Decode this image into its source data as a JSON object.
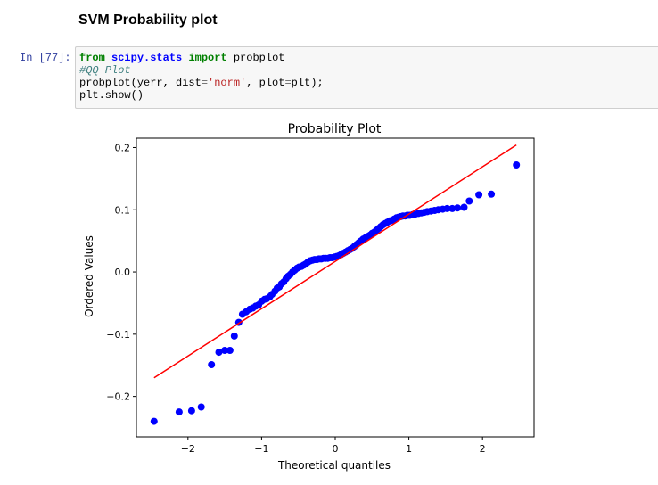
{
  "heading": "SVM Probability plot",
  "cell": {
    "prompt": "In [77]:",
    "code": {
      "line1": {
        "kw1": "from",
        "mod": "scipy.stats",
        "kw2": "import",
        "name": "probplot"
      },
      "line2": "#QQ Plot",
      "line3": {
        "pre": "probplot(yerr, dist",
        "eq1": "=",
        "str": "'norm'",
        "mid": ", plot",
        "eq2": "=",
        "post": "plt);"
      },
      "line4": "plt.show()"
    }
  },
  "chart_data": {
    "type": "scatter",
    "title": "Probability Plot",
    "xlabel": "Theoretical quantiles",
    "ylabel": "Ordered Values",
    "xlim": [
      -2.7,
      2.7
    ],
    "ylim": [
      -0.265,
      0.215
    ],
    "xticks": [
      -2,
      -1,
      0,
      1,
      2
    ],
    "xtick_labels": [
      "−2",
      "−1",
      "0",
      "1",
      "2"
    ],
    "yticks": [
      -0.2,
      -0.1,
      0.0,
      0.1,
      0.2
    ],
    "ytick_labels": [
      "−0.2",
      "−0.1",
      "0.0",
      "0.1",
      "0.2"
    ],
    "grid": false,
    "point_color": "#0000ff",
    "line_color": "#ff0000",
    "fit_line": {
      "x": [
        -2.46,
        2.46
      ],
      "y": [
        -0.17,
        0.204
      ]
    },
    "points": [
      [
        -2.46,
        -0.24
      ],
      [
        -2.12,
        -0.225
      ],
      [
        -1.95,
        -0.223
      ],
      [
        -1.82,
        -0.217
      ],
      [
        -1.68,
        -0.149
      ],
      [
        -1.58,
        -0.129
      ],
      [
        -1.5,
        -0.126
      ],
      [
        -1.43,
        -0.126
      ],
      [
        -1.37,
        -0.103
      ],
      [
        -1.31,
        -0.081
      ],
      [
        -1.26,
        -0.068
      ],
      [
        -1.21,
        -0.064
      ],
      [
        -1.16,
        -0.06
      ],
      [
        -1.12,
        -0.058
      ],
      [
        -1.08,
        -0.055
      ],
      [
        -1.04,
        -0.053
      ],
      [
        -1.0,
        -0.047
      ],
      [
        -0.96,
        -0.044
      ],
      [
        -0.93,
        -0.043
      ],
      [
        -0.89,
        -0.04
      ],
      [
        -0.86,
        -0.036
      ],
      [
        -0.82,
        -0.031
      ],
      [
        -0.79,
        -0.026
      ],
      [
        -0.76,
        -0.024
      ],
      [
        -0.73,
        -0.019
      ],
      [
        -0.7,
        -0.016
      ],
      [
        -0.67,
        -0.011
      ],
      [
        -0.64,
        -0.007
      ],
      [
        -0.61,
        -0.004
      ],
      [
        -0.58,
        0.0
      ],
      [
        -0.55,
        0.003
      ],
      [
        -0.52,
        0.006
      ],
      [
        -0.49,
        0.008
      ],
      [
        -0.46,
        0.009
      ],
      [
        -0.43,
        0.011
      ],
      [
        -0.4,
        0.013
      ],
      [
        -0.37,
        0.016
      ],
      [
        -0.34,
        0.018
      ],
      [
        -0.31,
        0.019
      ],
      [
        -0.28,
        0.02
      ],
      [
        -0.25,
        0.02
      ],
      [
        -0.22,
        0.021
      ],
      [
        -0.19,
        0.021
      ],
      [
        -0.16,
        0.022
      ],
      [
        -0.13,
        0.022
      ],
      [
        -0.1,
        0.022
      ],
      [
        -0.07,
        0.023
      ],
      [
        -0.04,
        0.023
      ],
      [
        -0.01,
        0.024
      ],
      [
        0.02,
        0.025
      ],
      [
        0.05,
        0.026
      ],
      [
        0.08,
        0.028
      ],
      [
        0.11,
        0.03
      ],
      [
        0.14,
        0.032
      ],
      [
        0.17,
        0.034
      ],
      [
        0.2,
        0.036
      ],
      [
        0.23,
        0.038
      ],
      [
        0.26,
        0.041
      ],
      [
        0.29,
        0.044
      ],
      [
        0.32,
        0.047
      ],
      [
        0.35,
        0.05
      ],
      [
        0.38,
        0.053
      ],
      [
        0.41,
        0.055
      ],
      [
        0.44,
        0.057
      ],
      [
        0.47,
        0.059
      ],
      [
        0.5,
        0.062
      ],
      [
        0.53,
        0.064
      ],
      [
        0.56,
        0.067
      ],
      [
        0.59,
        0.07
      ],
      [
        0.62,
        0.073
      ],
      [
        0.65,
        0.076
      ],
      [
        0.68,
        0.078
      ],
      [
        0.71,
        0.08
      ],
      [
        0.74,
        0.082
      ],
      [
        0.77,
        0.083
      ],
      [
        0.8,
        0.085
      ],
      [
        0.83,
        0.087
      ],
      [
        0.86,
        0.088
      ],
      [
        0.89,
        0.089
      ],
      [
        0.92,
        0.09
      ],
      [
        0.95,
        0.09
      ],
      [
        0.98,
        0.091
      ],
      [
        1.01,
        0.091
      ],
      [
        1.05,
        0.092
      ],
      [
        1.09,
        0.093
      ],
      [
        1.13,
        0.094
      ],
      [
        1.17,
        0.095
      ],
      [
        1.21,
        0.096
      ],
      [
        1.25,
        0.097
      ],
      [
        1.3,
        0.098
      ],
      [
        1.35,
        0.099
      ],
      [
        1.4,
        0.1
      ],
      [
        1.46,
        0.101
      ],
      [
        1.52,
        0.102
      ],
      [
        1.59,
        0.102
      ],
      [
        1.66,
        0.103
      ],
      [
        1.75,
        0.104
      ],
      [
        1.82,
        0.114
      ],
      [
        1.95,
        0.124
      ],
      [
        2.12,
        0.125
      ],
      [
        2.46,
        0.172
      ]
    ]
  }
}
